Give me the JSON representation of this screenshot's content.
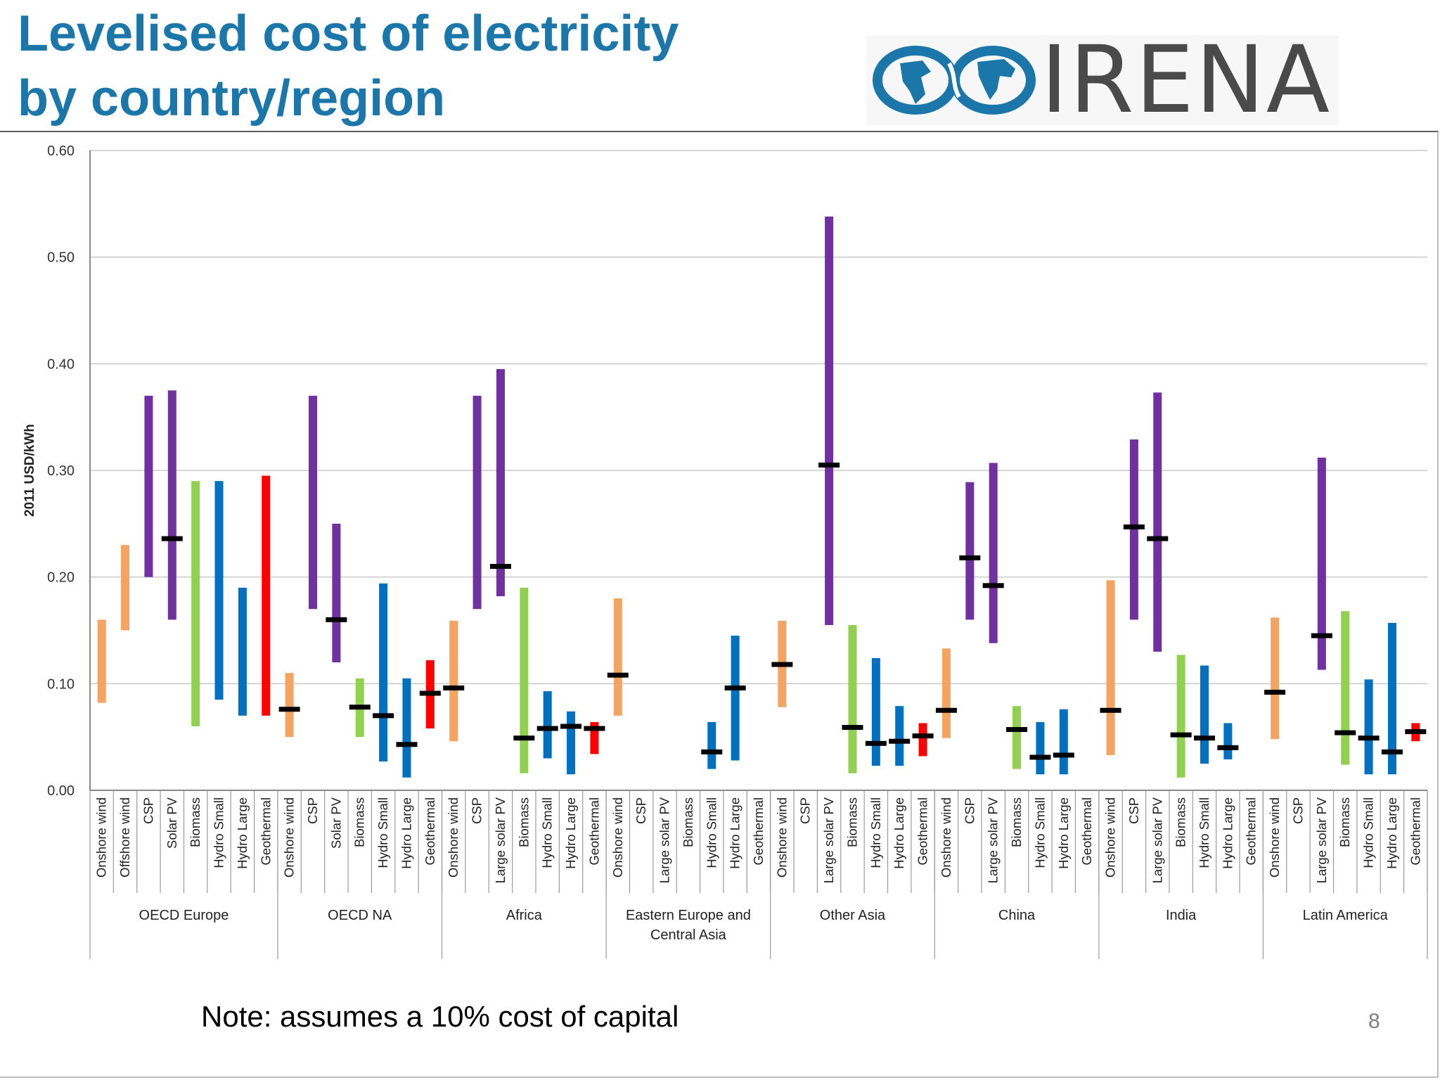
{
  "slide": {
    "title_line1": "Levelised cost of electricity",
    "title_line2": "by country/region",
    "logo_text": "IRENA",
    "note": "Note: assumes a 10% cost of capital",
    "page_number": "8"
  },
  "colors": {
    "title": "#1b77a9",
    "Onshore wind": "#f4a460",
    "Offshore wind": "#f4a460",
    "CSP": "#7030a0",
    "Solar PV": "#7030a0",
    "Large solar PV": "#7030a0",
    "Biomass": "#92d050",
    "Hydro Small": "#0070c0",
    "Hydro Large": "#0070c0",
    "Geothermal": "#ff0000",
    "weighted_average_marker": "#000000"
  },
  "chart_data": {
    "type": "bar",
    "subtype": "floating range bars with weighted-average markers",
    "ylabel": "2011 USD/kWh",
    "ylim": [
      0,
      0.6
    ],
    "yticks": [
      "0.00",
      "0.10",
      "0.20",
      "0.30",
      "0.40",
      "0.50",
      "0.60"
    ],
    "grid": true,
    "legend": "none",
    "groups": [
      {
        "name": "OECD Europe",
        "items": [
          {
            "tech": "Onshore wind",
            "low": 0.082,
            "high": 0.16
          },
          {
            "tech": "Offshore wind",
            "low": 0.15,
            "high": 0.23
          },
          {
            "tech": "CSP",
            "low": 0.2,
            "high": 0.37
          },
          {
            "tech": "Solar PV",
            "low": 0.16,
            "high": 0.375,
            "avg": 0.236
          },
          {
            "tech": "Biomass",
            "low": 0.06,
            "high": 0.29
          },
          {
            "tech": "Hydro Small",
            "low": 0.085,
            "high": 0.29
          },
          {
            "tech": "Hydro Large",
            "low": 0.07,
            "high": 0.19
          },
          {
            "tech": "Geothermal",
            "low": 0.07,
            "high": 0.295
          }
        ]
      },
      {
        "name": "OECD NA",
        "items": [
          {
            "tech": "Onshore wind",
            "low": 0.05,
            "high": 0.11,
            "avg": 0.076
          },
          {
            "tech": "CSP",
            "low": 0.17,
            "high": 0.37
          },
          {
            "tech": "Solar PV",
            "low": 0.12,
            "high": 0.25,
            "avg": 0.16
          },
          {
            "tech": "Biomass",
            "low": 0.05,
            "high": 0.105,
            "avg": 0.078
          },
          {
            "tech": "Hydro Small",
            "low": 0.027,
            "high": 0.194,
            "avg": 0.07
          },
          {
            "tech": "Hydro Large",
            "low": 0.012,
            "high": 0.105,
            "avg": 0.043
          },
          {
            "tech": "Geothermal",
            "low": 0.058,
            "high": 0.122,
            "avg": 0.091
          }
        ]
      },
      {
        "name": "Africa",
        "items": [
          {
            "tech": "Onshore wind",
            "low": 0.046,
            "high": 0.159,
            "avg": 0.096
          },
          {
            "tech": "CSP",
            "low": 0.17,
            "high": 0.37
          },
          {
            "tech": "Large solar PV",
            "low": 0.182,
            "high": 0.395,
            "avg": 0.21
          },
          {
            "tech": "Biomass",
            "low": 0.016,
            "high": 0.19,
            "avg": 0.049
          },
          {
            "tech": "Hydro Small",
            "low": 0.03,
            "high": 0.093,
            "avg": 0.058
          },
          {
            "tech": "Hydro Large",
            "low": 0.015,
            "high": 0.074,
            "avg": 0.06
          },
          {
            "tech": "Geothermal",
            "low": 0.034,
            "high": 0.064,
            "avg": 0.058
          }
        ]
      },
      {
        "name": "Eastern Europe and Central Asia",
        "items": [
          {
            "tech": "Onshore wind",
            "low": 0.07,
            "high": 0.18,
            "avg": 0.108
          },
          {
            "tech": "CSP"
          },
          {
            "tech": "Large solar PV"
          },
          {
            "tech": "Biomass"
          },
          {
            "tech": "Hydro Small",
            "low": 0.02,
            "high": 0.064,
            "avg": 0.036
          },
          {
            "tech": "Hydro Large",
            "low": 0.028,
            "high": 0.145,
            "avg": 0.096
          },
          {
            "tech": "Geothermal"
          }
        ]
      },
      {
        "name": "Other Asia",
        "items": [
          {
            "tech": "Onshore wind",
            "low": 0.078,
            "high": 0.159,
            "avg": 0.118
          },
          {
            "tech": "CSP"
          },
          {
            "tech": "Large solar PV",
            "low": 0.155,
            "high": 0.538,
            "avg": 0.305
          },
          {
            "tech": "Biomass",
            "low": 0.016,
            "high": 0.155,
            "avg": 0.059
          },
          {
            "tech": "Hydro Small",
            "low": 0.023,
            "high": 0.124,
            "avg": 0.044
          },
          {
            "tech": "Hydro Large",
            "low": 0.023,
            "high": 0.079,
            "avg": 0.046
          },
          {
            "tech": "Geothermal",
            "low": 0.032,
            "high": 0.063,
            "avg": 0.051
          }
        ]
      },
      {
        "name": "China",
        "items": [
          {
            "tech": "Onshore wind",
            "low": 0.049,
            "high": 0.133,
            "avg": 0.075
          },
          {
            "tech": "CSP",
            "low": 0.16,
            "high": 0.289,
            "avg": 0.218
          },
          {
            "tech": "Large solar PV",
            "low": 0.138,
            "high": 0.307,
            "avg": 0.192
          },
          {
            "tech": "Biomass",
            "low": 0.02,
            "high": 0.079,
            "avg": 0.057
          },
          {
            "tech": "Hydro Small",
            "low": 0.015,
            "high": 0.064,
            "avg": 0.031
          },
          {
            "tech": "Hydro Large",
            "low": 0.015,
            "high": 0.076,
            "avg": 0.033
          },
          {
            "tech": "Geothermal"
          }
        ]
      },
      {
        "name": "India",
        "items": [
          {
            "tech": "Onshore wind",
            "low": 0.033,
            "high": 0.197,
            "avg": 0.075
          },
          {
            "tech": "CSP",
            "low": 0.16,
            "high": 0.329,
            "avg": 0.247
          },
          {
            "tech": "Large solar PV",
            "low": 0.13,
            "high": 0.373,
            "avg": 0.236
          },
          {
            "tech": "Biomass",
            "low": 0.012,
            "high": 0.127,
            "avg": 0.052
          },
          {
            "tech": "Hydro Small",
            "low": 0.025,
            "high": 0.117,
            "avg": 0.049
          },
          {
            "tech": "Hydro Large",
            "low": 0.029,
            "high": 0.063,
            "avg": 0.04
          },
          {
            "tech": "Geothermal"
          }
        ]
      },
      {
        "name": "Latin America",
        "items": [
          {
            "tech": "Onshore wind",
            "low": 0.048,
            "high": 0.162,
            "avg": 0.092
          },
          {
            "tech": "CSP"
          },
          {
            "tech": "Large solar PV",
            "low": 0.113,
            "high": 0.312,
            "avg": 0.145
          },
          {
            "tech": "Biomass",
            "low": 0.024,
            "high": 0.168,
            "avg": 0.054
          },
          {
            "tech": "Hydro Small",
            "low": 0.015,
            "high": 0.104,
            "avg": 0.049
          },
          {
            "tech": "Hydro Large",
            "low": 0.015,
            "high": 0.157,
            "avg": 0.036
          },
          {
            "tech": "Geothermal",
            "low": 0.046,
            "high": 0.063,
            "avg": 0.055
          }
        ]
      }
    ]
  }
}
